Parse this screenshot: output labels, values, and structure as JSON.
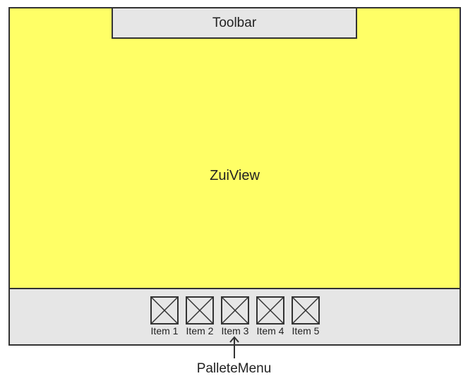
{
  "colors": {
    "zui_background": "#ffff66",
    "toolbar_background": "#e6e6e6",
    "palette_background": "#e6e6e6",
    "border": "#333333"
  },
  "zui_view": {
    "label": "ZuiView"
  },
  "toolbar": {
    "label": "Toolbar"
  },
  "palette_menu": {
    "label": "PalleteMenu",
    "items": [
      {
        "label": "Item 1",
        "icon": "placeholder-image-icon"
      },
      {
        "label": "Item 2",
        "icon": "placeholder-image-icon"
      },
      {
        "label": "Item 3",
        "icon": "placeholder-image-icon"
      },
      {
        "label": "Item 4",
        "icon": "placeholder-image-icon"
      },
      {
        "label": "Item 5",
        "icon": "placeholder-image-icon"
      }
    ]
  }
}
